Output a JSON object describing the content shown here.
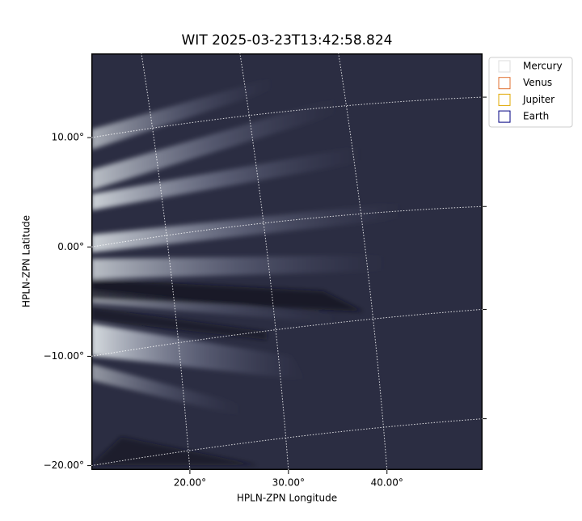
{
  "chart_data": {
    "type": "image",
    "title": "WIT 2025-03-23T13:42:58.824",
    "xlabel": "HPLN-ZPN Longitude",
    "ylabel": "HPLN-ZPN Latitude",
    "xlim": [
      10,
      49.7
    ],
    "ylim": [
      -20.4,
      17.7
    ],
    "xticks": [
      {
        "value": 20,
        "label": "20.00°"
      },
      {
        "value": 30,
        "label": "30.00°"
      },
      {
        "value": 40,
        "label": "40.00°"
      }
    ],
    "yticks": [
      {
        "value": 10,
        "label": "10.00°"
      },
      {
        "value": 0,
        "label": "0.00°"
      },
      {
        "value": -10,
        "label": "−10.00°"
      },
      {
        "value": -20,
        "label": "−20.00°"
      }
    ],
    "grid": true,
    "legend_position": "upper right",
    "series": [
      {
        "name": "Mercury",
        "color": "#dddddd"
      },
      {
        "name": "Venus",
        "color": "#e07030"
      },
      {
        "name": "Jupiter",
        "color": "#e0a800"
      },
      {
        "name": "Earth",
        "color": "#000080"
      }
    ]
  }
}
